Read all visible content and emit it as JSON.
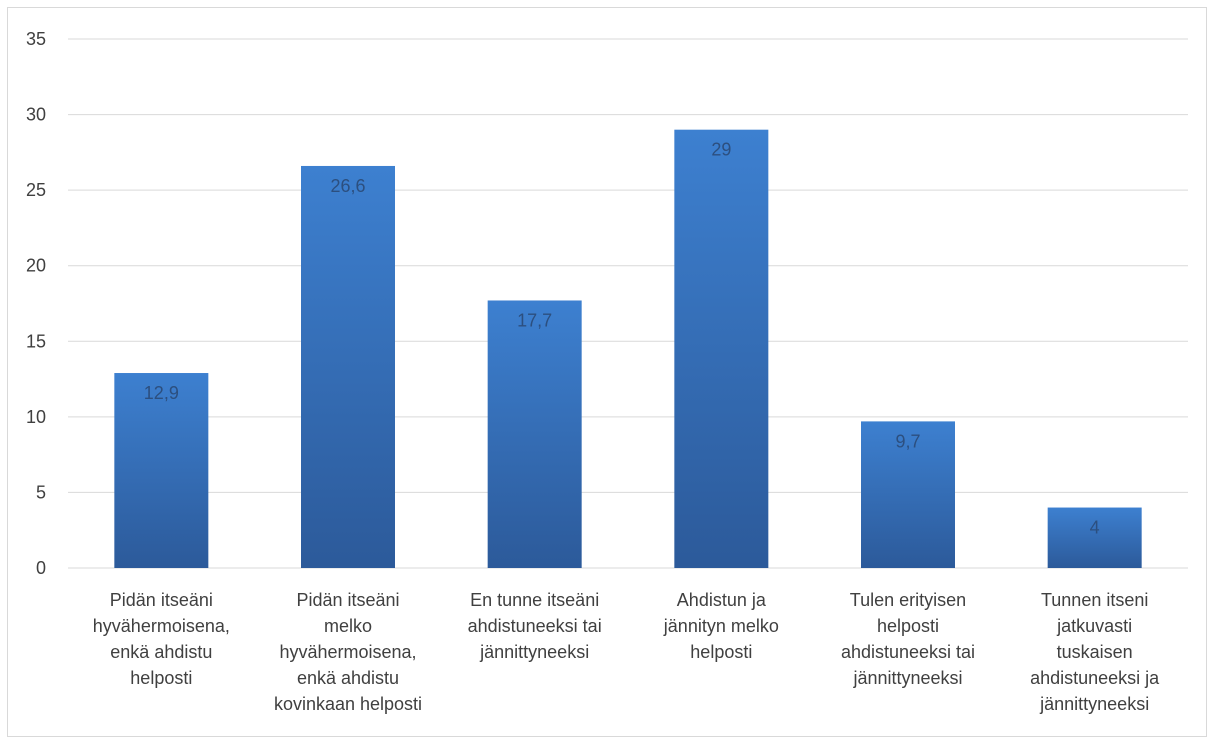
{
  "chart_data": {
    "type": "bar",
    "title": "",
    "xlabel": "",
    "ylabel": "",
    "ylim": [
      0,
      35
    ],
    "yticks": [
      0,
      5,
      10,
      15,
      20,
      25,
      30,
      35
    ],
    "grid": true,
    "legend": "none",
    "categories": [
      [
        "Pidän itseäni",
        "hyvähermoisena,",
        "enkä ahdistu",
        "helposti"
      ],
      [
        "Pidän itseäni",
        "melko",
        "hyvähermoisena,",
        "enkä ahdistu",
        "kovinkaan helposti"
      ],
      [
        "En tunne itseäni",
        "ahdistuneeksi tai",
        "jännittyneeksi"
      ],
      [
        "Ahdistun ja",
        "jännityn melko",
        "helposti"
      ],
      [
        "Tulen erityisen",
        "helposti",
        "ahdistuneeksi tai",
        "jännittyneeksi"
      ],
      [
        "Tunnen itseni",
        "jatkuvasti",
        "tuskaisen",
        "ahdistuneeksi ja",
        "jännittyneeksi"
      ]
    ],
    "values": [
      12.9,
      26.6,
      17.7,
      29,
      9.7,
      4
    ],
    "data_labels": [
      "12,9",
      "26,6",
      "17,7",
      "29",
      "9,7",
      "4"
    ],
    "colors": {
      "bar_top": "#3d80d0",
      "bar_bottom": "#2c5a9a",
      "grid": "#d9d9d9",
      "tick_text": "#404040",
      "data_label": "#2c4f7f"
    }
  }
}
